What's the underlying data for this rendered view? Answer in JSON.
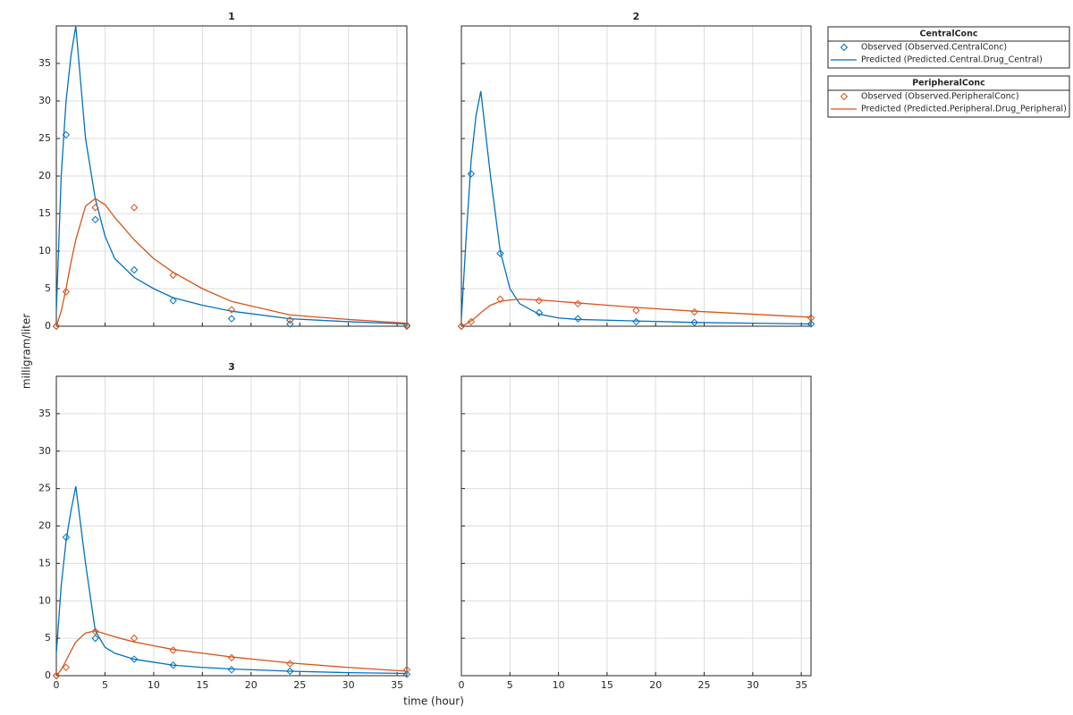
{
  "chart_data": [
    {
      "type": "line",
      "title": "1",
      "xlim": [
        0,
        36
      ],
      "ylim": [
        0,
        40
      ],
      "xticks": [
        0,
        5,
        10,
        15,
        20,
        25,
        30,
        35
      ],
      "yticks": [
        0,
        5,
        10,
        15,
        20,
        25,
        30,
        35
      ],
      "grid": true,
      "series": [
        {
          "color": "#0072bd",
          "style": "diamond",
          "x": [
            0,
            1,
            4,
            8,
            12,
            18,
            24,
            24,
            36
          ],
          "values": [
            0,
            25.5,
            14.2,
            7.5,
            3.4,
            1.0,
            0.8,
            0.3,
            0.1
          ]
        },
        {
          "color": "#0072bd",
          "style": "line",
          "x": [
            0,
            0.5,
            1,
            1.5,
            2,
            3,
            4,
            5,
            6,
            8,
            10,
            12,
            15,
            18,
            24,
            30,
            36
          ],
          "values": [
            2,
            20,
            30,
            36,
            40,
            25,
            17,
            12,
            9,
            6.5,
            5,
            3.8,
            2.8,
            2,
            1,
            0.6,
            0.3
          ]
        },
        {
          "color": "#d95319",
          "style": "diamond",
          "x": [
            0,
            1,
            4,
            8,
            12,
            18,
            24,
            36
          ],
          "values": [
            0,
            4.6,
            15.8,
            15.8,
            6.8,
            2.2,
            0.8,
            0
          ]
        },
        {
          "color": "#d95319",
          "style": "line",
          "x": [
            0,
            0.5,
            1,
            1.5,
            2,
            3,
            4,
            5,
            6,
            8,
            10,
            12,
            15,
            18,
            24,
            30,
            36
          ],
          "values": [
            0,
            2,
            5,
            8.5,
            11.5,
            16,
            17,
            16.2,
            14.5,
            11.5,
            9,
            7.2,
            5,
            3.3,
            1.5,
            0.9,
            0.4
          ]
        }
      ]
    },
    {
      "type": "line",
      "title": "2",
      "xlim": [
        0,
        36
      ],
      "ylim": [
        0,
        40
      ],
      "xticks": [
        0,
        5,
        10,
        15,
        20,
        25,
        30,
        35
      ],
      "yticks": [
        0,
        5,
        10,
        15,
        20,
        25,
        30,
        35
      ],
      "grid": true,
      "series": [
        {
          "color": "#0072bd",
          "style": "diamond",
          "x": [
            0,
            1,
            4,
            8,
            12,
            18,
            24,
            36
          ],
          "values": [
            0,
            20.3,
            9.7,
            1.8,
            1.0,
            0.6,
            0.5,
            0.3
          ]
        },
        {
          "color": "#0072bd",
          "style": "line",
          "x": [
            0,
            0.5,
            1,
            1.5,
            2,
            3,
            4,
            5,
            6,
            8,
            10,
            12,
            15,
            18,
            24,
            30,
            36
          ],
          "values": [
            1,
            12,
            22,
            28,
            31.3,
            20,
            10,
            5,
            3,
            1.6,
            1.1,
            0.9,
            0.8,
            0.7,
            0.5,
            0.4,
            0.3
          ]
        },
        {
          "color": "#d95319",
          "style": "diamond",
          "x": [
            0,
            1,
            4,
            8,
            12,
            18,
            24,
            36
          ],
          "values": [
            0,
            0.6,
            3.6,
            3.4,
            3.0,
            2.1,
            1.9,
            1.1
          ]
        },
        {
          "color": "#d95319",
          "style": "line",
          "x": [
            0,
            0.5,
            1,
            1.5,
            2,
            3,
            4,
            5,
            6,
            8,
            10,
            12,
            15,
            18,
            24,
            30,
            36
          ],
          "values": [
            0,
            0.3,
            0.7,
            1.2,
            1.8,
            2.8,
            3.3,
            3.5,
            3.6,
            3.5,
            3.3,
            3.1,
            2.8,
            2.5,
            2,
            1.6,
            1.2
          ]
        }
      ]
    },
    {
      "type": "line",
      "title": "3",
      "xlim": [
        0,
        36
      ],
      "ylim": [
        0,
        40
      ],
      "xticks": [
        0,
        5,
        10,
        15,
        20,
        25,
        30,
        35
      ],
      "yticks": [
        0,
        5,
        10,
        15,
        20,
        25,
        30,
        35
      ],
      "grid": true,
      "series": [
        {
          "color": "#0072bd",
          "style": "diamond",
          "x": [
            0,
            1,
            4,
            8,
            12,
            18,
            24,
            36
          ],
          "values": [
            0,
            18.5,
            5.0,
            2.2,
            1.4,
            0.8,
            0.6,
            0.2
          ]
        },
        {
          "color": "#0072bd",
          "style": "line",
          "x": [
            0,
            0.5,
            1,
            1.5,
            2,
            3,
            4,
            5,
            6,
            8,
            10,
            12,
            15,
            18,
            24,
            30,
            36
          ],
          "values": [
            3,
            12,
            18,
            22,
            25.3,
            15,
            6,
            3.8,
            3,
            2.2,
            1.8,
            1.4,
            1.1,
            0.9,
            0.6,
            0.4,
            0.3
          ]
        },
        {
          "color": "#d95319",
          "style": "diamond",
          "x": [
            0,
            1,
            4,
            8,
            12,
            18,
            24,
            36
          ],
          "values": [
            0,
            1.1,
            5.9,
            5.0,
            3.4,
            2.4,
            1.6,
            0.8
          ]
        },
        {
          "color": "#d95319",
          "style": "line",
          "x": [
            0,
            0.5,
            1,
            1.5,
            2,
            3,
            4,
            5,
            6,
            8,
            10,
            12,
            15,
            18,
            24,
            30,
            36
          ],
          "values": [
            0,
            0.8,
            2,
            3.3,
            4.5,
            5.7,
            6,
            5.6,
            5.2,
            4.5,
            4,
            3.5,
            3,
            2.5,
            1.7,
            1.1,
            0.6
          ]
        }
      ]
    },
    {
      "type": "line",
      "xlim": [
        0,
        36
      ],
      "ylim": [
        0,
        40
      ],
      "xticks": [
        0,
        5,
        10,
        15,
        20,
        25,
        30,
        35
      ],
      "yticks": [
        0,
        5,
        10,
        15,
        20,
        25,
        30,
        35
      ],
      "grid": true,
      "series": []
    }
  ],
  "xlabel": "time (hour)",
  "ylabel": "milligram/liter",
  "legend": {
    "groups": [
      {
        "title": "CentralConc",
        "entries": [
          "Observed (Observed.CentralConc)",
          "Predicted (Predicted.Central.Drug_Central)"
        ]
      },
      {
        "title": "PeripheralConc",
        "entries": [
          "Observed (Observed.PeripheralConc)",
          "Predicted (Predicted.Peripheral.Drug_Peripheral)"
        ]
      }
    ]
  }
}
